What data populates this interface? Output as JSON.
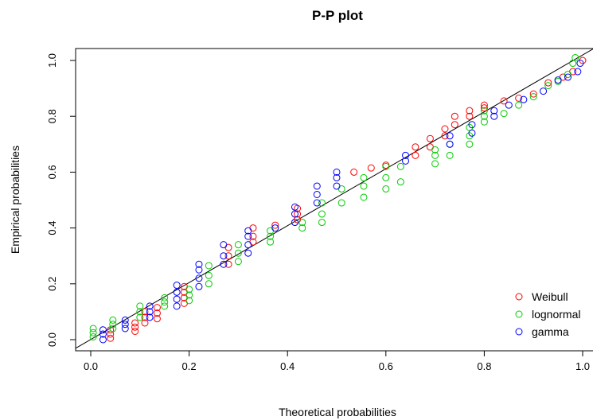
{
  "chart_data": {
    "type": "scatter",
    "title": "P-P plot",
    "xlabel": "Theoretical probabilities",
    "ylabel": "Empirical probabilities",
    "xlim": [
      0.0,
      1.0
    ],
    "ylim": [
      0.0,
      1.0
    ],
    "xticks": [
      "0.0",
      "0.2",
      "0.4",
      "0.6",
      "0.8",
      "1.0"
    ],
    "yticks": [
      "0.0",
      "0.2",
      "0.4",
      "0.6",
      "0.8",
      "1.0"
    ],
    "grid": false,
    "legend_position": "bottom-right",
    "reference_line": {
      "from": [
        0,
        0
      ],
      "to": [
        1,
        1
      ],
      "color": "#000000"
    },
    "marker": "open-circle",
    "series": [
      {
        "name": "Weibull",
        "color": "#ff0000",
        "points": [
          [
            0.04,
            0.005
          ],
          [
            0.04,
            0.02
          ],
          [
            0.04,
            0.035
          ],
          [
            0.09,
            0.03
          ],
          [
            0.09,
            0.045
          ],
          [
            0.09,
            0.06
          ],
          [
            0.11,
            0.06
          ],
          [
            0.11,
            0.08
          ],
          [
            0.11,
            0.1
          ],
          [
            0.135,
            0.075
          ],
          [
            0.135,
            0.095
          ],
          [
            0.135,
            0.115
          ],
          [
            0.19,
            0.13
          ],
          [
            0.19,
            0.15
          ],
          [
            0.19,
            0.17
          ],
          [
            0.19,
            0.19
          ],
          [
            0.28,
            0.27
          ],
          [
            0.28,
            0.3
          ],
          [
            0.28,
            0.33
          ],
          [
            0.33,
            0.35
          ],
          [
            0.33,
            0.37
          ],
          [
            0.33,
            0.4
          ],
          [
            0.375,
            0.41
          ],
          [
            0.42,
            0.43
          ],
          [
            0.42,
            0.45
          ],
          [
            0.42,
            0.47
          ],
          [
            0.535,
            0.6
          ],
          [
            0.57,
            0.615
          ],
          [
            0.6,
            0.625
          ],
          [
            0.66,
            0.66
          ],
          [
            0.66,
            0.69
          ],
          [
            0.69,
            0.69
          ],
          [
            0.69,
            0.72
          ],
          [
            0.72,
            0.73
          ],
          [
            0.72,
            0.755
          ],
          [
            0.74,
            0.77
          ],
          [
            0.74,
            0.8
          ],
          [
            0.77,
            0.8
          ],
          [
            0.77,
            0.82
          ],
          [
            0.8,
            0.83
          ],
          [
            0.8,
            0.84
          ],
          [
            0.84,
            0.855
          ],
          [
            0.87,
            0.865
          ],
          [
            0.9,
            0.88
          ],
          [
            0.93,
            0.92
          ],
          [
            0.96,
            0.94
          ],
          [
            0.98,
            0.96
          ],
          [
            1.0,
            1.0
          ]
        ]
      },
      {
        "name": "lognormal",
        "color": "#00cc00",
        "points": [
          [
            0.005,
            0.01
          ],
          [
            0.005,
            0.025
          ],
          [
            0.005,
            0.04
          ],
          [
            0.045,
            0.04
          ],
          [
            0.045,
            0.055
          ],
          [
            0.045,
            0.07
          ],
          [
            0.1,
            0.08
          ],
          [
            0.1,
            0.1
          ],
          [
            0.1,
            0.12
          ],
          [
            0.15,
            0.12
          ],
          [
            0.15,
            0.135
          ],
          [
            0.15,
            0.15
          ],
          [
            0.2,
            0.14
          ],
          [
            0.2,
            0.16
          ],
          [
            0.2,
            0.18
          ],
          [
            0.24,
            0.2
          ],
          [
            0.24,
            0.23
          ],
          [
            0.24,
            0.265
          ],
          [
            0.3,
            0.28
          ],
          [
            0.3,
            0.31
          ],
          [
            0.3,
            0.34
          ],
          [
            0.365,
            0.35
          ],
          [
            0.365,
            0.37
          ],
          [
            0.365,
            0.39
          ],
          [
            0.43,
            0.4
          ],
          [
            0.43,
            0.42
          ],
          [
            0.47,
            0.42
          ],
          [
            0.47,
            0.45
          ],
          [
            0.47,
            0.49
          ],
          [
            0.51,
            0.49
          ],
          [
            0.51,
            0.54
          ],
          [
            0.555,
            0.51
          ],
          [
            0.555,
            0.55
          ],
          [
            0.555,
            0.58
          ],
          [
            0.6,
            0.54
          ],
          [
            0.6,
            0.58
          ],
          [
            0.6,
            0.62
          ],
          [
            0.63,
            0.565
          ],
          [
            0.63,
            0.62
          ],
          [
            0.7,
            0.63
          ],
          [
            0.7,
            0.66
          ],
          [
            0.7,
            0.68
          ],
          [
            0.73,
            0.66
          ],
          [
            0.73,
            0.7
          ],
          [
            0.77,
            0.7
          ],
          [
            0.77,
            0.73
          ],
          [
            0.77,
            0.76
          ],
          [
            0.8,
            0.78
          ],
          [
            0.8,
            0.8
          ],
          [
            0.8,
            0.82
          ],
          [
            0.84,
            0.81
          ],
          [
            0.87,
            0.84
          ],
          [
            0.9,
            0.87
          ],
          [
            0.93,
            0.91
          ],
          [
            0.95,
            0.925
          ],
          [
            0.97,
            0.95
          ],
          [
            0.98,
            0.99
          ],
          [
            0.985,
            1.01
          ]
        ]
      },
      {
        "name": "gamma",
        "color": "#0000ff",
        "points": [
          [
            0.025,
            0.0
          ],
          [
            0.025,
            0.02
          ],
          [
            0.025,
            0.035
          ],
          [
            0.07,
            0.04
          ],
          [
            0.07,
            0.055
          ],
          [
            0.07,
            0.07
          ],
          [
            0.12,
            0.08
          ],
          [
            0.12,
            0.1
          ],
          [
            0.12,
            0.12
          ],
          [
            0.175,
            0.12
          ],
          [
            0.175,
            0.145
          ],
          [
            0.175,
            0.17
          ],
          [
            0.175,
            0.195
          ],
          [
            0.22,
            0.19
          ],
          [
            0.22,
            0.22
          ],
          [
            0.22,
            0.25
          ],
          [
            0.22,
            0.27
          ],
          [
            0.27,
            0.27
          ],
          [
            0.27,
            0.3
          ],
          [
            0.27,
            0.34
          ],
          [
            0.32,
            0.31
          ],
          [
            0.32,
            0.34
          ],
          [
            0.32,
            0.37
          ],
          [
            0.32,
            0.39
          ],
          [
            0.375,
            0.4
          ],
          [
            0.415,
            0.42
          ],
          [
            0.415,
            0.45
          ],
          [
            0.415,
            0.475
          ],
          [
            0.46,
            0.49
          ],
          [
            0.46,
            0.52
          ],
          [
            0.46,
            0.55
          ],
          [
            0.5,
            0.55
          ],
          [
            0.5,
            0.58
          ],
          [
            0.5,
            0.6
          ],
          [
            0.64,
            0.64
          ],
          [
            0.64,
            0.66
          ],
          [
            0.73,
            0.7
          ],
          [
            0.73,
            0.73
          ],
          [
            0.775,
            0.74
          ],
          [
            0.775,
            0.77
          ],
          [
            0.82,
            0.8
          ],
          [
            0.82,
            0.82
          ],
          [
            0.85,
            0.84
          ],
          [
            0.88,
            0.86
          ],
          [
            0.92,
            0.89
          ],
          [
            0.95,
            0.93
          ],
          [
            0.97,
            0.94
          ],
          [
            0.99,
            0.96
          ],
          [
            0.995,
            0.99
          ]
        ]
      }
    ]
  }
}
